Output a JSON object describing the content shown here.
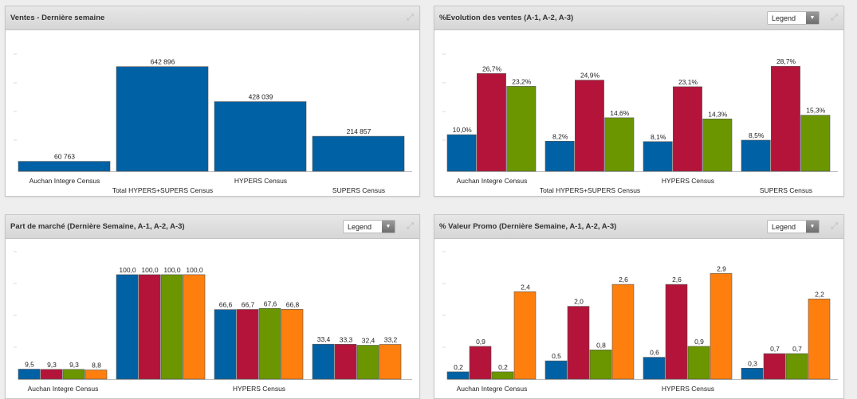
{
  "colors": {
    "blue": "#0061a5",
    "red": "#b4143a",
    "green": "#6b9600",
    "orange": "#ff7f0e"
  },
  "panels": [
    {
      "title": "Ventes - Dernière semaine",
      "has_legend": false,
      "chart_data": {
        "type": "bar",
        "title": "Ventes - Dernière semaine",
        "categories": [
          "Auchan Integre Census",
          "Total HYPERS+SUPERS Census",
          "HYPERS Census",
          "SUPERS Census"
        ],
        "series": [
          {
            "values": [
              60763,
              642896,
              428039,
              214857
            ],
            "labels": [
              "60 763",
              "642 896",
              "428 039",
              "214 857"
            ],
            "color": "#0061a5"
          }
        ],
        "ylim": [
          0,
          720000
        ],
        "grid": false
      }
    },
    {
      "title": "%Evolution des ventes (A-1, A-2, A-3)",
      "has_legend": true,
      "legend_label": "Legend",
      "chart_data": {
        "type": "bar",
        "title": "%Evolution des ventes (A-1, A-2, A-3)",
        "categories": [
          "Auchan Integre Census",
          "Total HYPERS+SUPERS Census",
          "HYPERS Census",
          "SUPERS Census"
        ],
        "series": [
          {
            "values": [
              10.0,
              8.2,
              8.1,
              8.5
            ],
            "labels": [
              "10,0%",
              "8,2%",
              "8,1%",
              "8,5%"
            ],
            "color": "#0061a5"
          },
          {
            "values": [
              26.7,
              24.9,
              23.1,
              28.7
            ],
            "labels": [
              "26,7%",
              "24,9%",
              "23,1%",
              "28,7%"
            ],
            "color": "#b4143a"
          },
          {
            "values": [
              23.2,
              14.6,
              14.3,
              15.3
            ],
            "labels": [
              "23,2%",
              "14,6%",
              "14,3%",
              "15,3%"
            ],
            "color": "#6b9600"
          }
        ],
        "ylim": [
          0,
          32
        ],
        "grid": false
      }
    },
    {
      "title": "Part de marché (Dernière Semaine, A-1, A-2, A-3)",
      "has_legend": true,
      "legend_label": "Legend",
      "chart_data": {
        "type": "bar",
        "title": "Part de marché (Dernière Semaine, A-1, A-2, A-3)",
        "categories": [
          "Auchan Integre Census",
          "",
          "HYPERS Census",
          ""
        ],
        "series": [
          {
            "values": [
              9.5,
              100.0,
              66.6,
              33.4
            ],
            "labels": [
              "9,5",
              "100,0",
              "66,6",
              "33,4"
            ],
            "color": "#0061a5"
          },
          {
            "values": [
              9.3,
              100.0,
              66.7,
              33.3
            ],
            "labels": [
              "9,3",
              "100,0",
              "66,7",
              "33,3"
            ],
            "color": "#b4143a"
          },
          {
            "values": [
              9.3,
              100.0,
              67.6,
              32.4
            ],
            "labels": [
              "9,3",
              "100,0",
              "67,6",
              "32,4"
            ],
            "color": "#6b9600"
          },
          {
            "values": [
              8.8,
              100.0,
              66.8,
              33.2
            ],
            "labels": [
              "8,8",
              "100,0",
              "66,8",
              "33,2"
            ],
            "color": "#ff7f0e"
          }
        ],
        "ylim": [
          0,
          122
        ],
        "grid": false
      }
    },
    {
      "title": "% Valeur Promo (Dernière Semaine, A-1, A-2, A-3)",
      "has_legend": true,
      "legend_label": "Legend",
      "chart_data": {
        "type": "bar",
        "title": "% Valeur Promo (Dernière Semaine, A-1, A-2, A-3)",
        "categories": [
          "Auchan Integre Census",
          "",
          "HYPERS Census",
          ""
        ],
        "series": [
          {
            "values": [
              0.2,
              0.5,
              0.6,
              0.3
            ],
            "labels": [
              "0,2",
              "0,5",
              "0,6",
              "0,3"
            ],
            "color": "#0061a5"
          },
          {
            "values": [
              0.9,
              2.0,
              2.6,
              0.7
            ],
            "labels": [
              "0,9",
              "2,0",
              "2,6",
              "0,7"
            ],
            "color": "#b4143a"
          },
          {
            "values": [
              0.2,
              0.8,
              0.9,
              0.7
            ],
            "labels": [
              "0,2",
              "0,8",
              "0,9",
              "0,7"
            ],
            "color": "#6b9600"
          },
          {
            "values": [
              2.4,
              2.6,
              2.9,
              2.2
            ],
            "labels": [
              "2,4",
              "2,6",
              "2,9",
              "2,2"
            ],
            "color": "#ff7f0e"
          }
        ],
        "ylim": [
          0,
          3.5
        ],
        "grid": false
      }
    }
  ]
}
